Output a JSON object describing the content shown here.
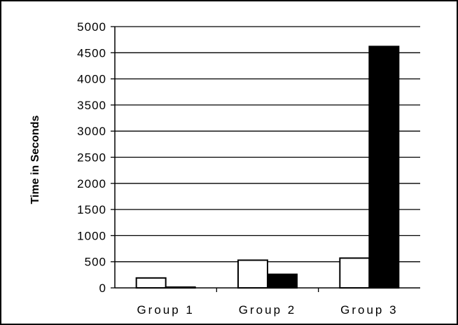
{
  "chart_data": {
    "type": "bar",
    "title": "",
    "xlabel": "",
    "ylabel": "Time in Seconds",
    "categories": [
      "Group 1",
      "Group 2",
      "Group 3"
    ],
    "y_ticks": [
      "0",
      "500",
      "1000",
      "1500",
      "2000",
      "2500",
      "3000",
      "3500",
      "4000",
      "4500",
      "5000"
    ],
    "ylim": [
      0,
      5000
    ],
    "grid": true,
    "legend": "none",
    "series": [
      {
        "values": [
          190,
          530,
          570
        ],
        "fill": "#ffffff",
        "stroke": "#000000"
      },
      {
        "values": [
          15,
          260,
          4620
        ],
        "fill": "#000000",
        "stroke": "#000000"
      }
    ]
  }
}
